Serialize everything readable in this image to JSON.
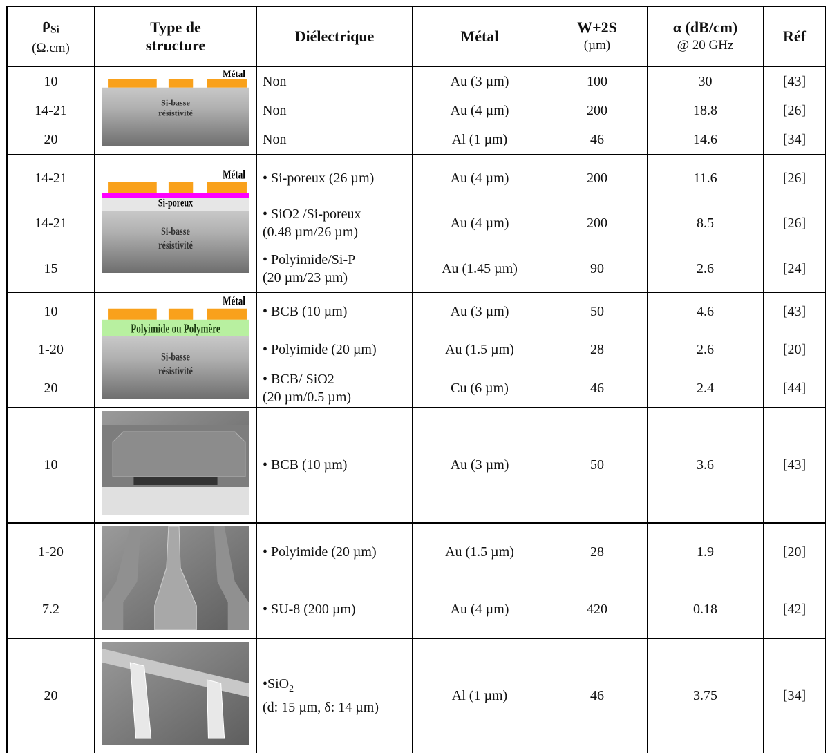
{
  "table": {
    "header": [
      {
        "lines": [
          {
            "text": "ρ",
            "sub": "Si"
          },
          "(Ω.cm)"
        ]
      },
      {
        "lines": [
          "Type de",
          "structure"
        ]
      },
      {
        "lines": [
          "Diélectrique"
        ]
      },
      {
        "lines": [
          "Métal"
        ]
      },
      {
        "lines": [
          "W+2S",
          "(µm)"
        ]
      },
      {
        "lines": [
          "α (dB/cm)",
          "@ 20 GHz"
        ]
      },
      {
        "lines": [
          "Réf"
        ]
      }
    ],
    "groups": [
      {
        "structure": {
          "metal": "Métal",
          "substrate": [
            "Si-basse",
            "résistivité"
          ]
        },
        "rows": [
          {
            "rho": "10",
            "dielectric": [
              "Non"
            ],
            "metal": "Au (3 µm)",
            "w2s": "100",
            "alpha": "30",
            "ref": "[43]"
          },
          {
            "rho": "14-21",
            "dielectric": [
              "Non"
            ],
            "metal": "Au (4 µm)",
            "w2s": "200",
            "alpha": "18.8",
            "ref": "[26]"
          },
          {
            "rho": "20",
            "dielectric": [
              "Non"
            ],
            "metal": "Al (1 µm)",
            "w2s": "46",
            "alpha": "14.6",
            "ref": "[34]"
          }
        ]
      },
      {
        "structure": {
          "metal": "Métal",
          "layer": "Si-poreux",
          "substrate": [
            "Si-basse",
            "résistivité"
          ]
        },
        "rows": [
          {
            "rho": "14-21",
            "dielectric": [
              "• Si-poreux (26 µm)"
            ],
            "metal": "Au (4 µm)",
            "w2s": "200",
            "alpha": "11.6",
            "ref": "[26]"
          },
          {
            "rho": "14-21",
            "dielectric": [
              "• SiO2 /Si-poreux",
              "(0.48 µm/26 µm)"
            ],
            "metal": "Au (4 µm)",
            "w2s": "200",
            "alpha": "8.5",
            "ref": "[26]"
          },
          {
            "rho": "15",
            "dielectric": [
              "• Polyimide/Si-P",
              "(20 µm/23 µm)"
            ],
            "metal": "Au (1.45 µm)",
            "w2s": "90",
            "alpha": "2.6",
            "ref": "[24]"
          }
        ]
      },
      {
        "structure": {
          "metal": "Métal",
          "layer": "Polyimide ou Polymère",
          "substrate": [
            "Si-basse",
            "résistivité"
          ]
        },
        "rows": [
          {
            "rho": "10",
            "dielectric": [
              "• BCB (10 µm)"
            ],
            "metal": "Au (3 µm)",
            "w2s": "50",
            "alpha": "4.6",
            "ref": "[43]"
          },
          {
            "rho": "1-20",
            "dielectric": [
              "• Polyimide (20 µm)"
            ],
            "metal": "Au (1.5 µm)",
            "w2s": "28",
            "alpha": "2.6",
            "ref": "[20]"
          },
          {
            "rho": "20",
            "dielectric": [
              "• BCB/ SiO2",
              "(20 µm/0.5 µm)"
            ],
            "metal": "Cu (6 µm)",
            "w2s": "46",
            "alpha": "2.4",
            "ref": "[44]"
          }
        ]
      },
      {
        "rows": [
          {
            "rho": "10",
            "dielectric": [
              "• BCB (10 µm)"
            ],
            "metal": "Au (3 µm)",
            "w2s": "50",
            "alpha": "3.6",
            "ref": "[43]"
          }
        ]
      },
      {
        "rows": [
          {
            "rho": "1-20",
            "dielectric": [
              "• Polyimide (20 µm)"
            ],
            "metal": "Au (1.5 µm)",
            "w2s": "28",
            "alpha": "1.9",
            "ref": "[20]"
          },
          {
            "rho": "7.2",
            "dielectric": [
              "• SU-8 (200 µm)"
            ],
            "metal": "Au (4 µm)",
            "w2s": "420",
            "alpha": "0.18",
            "ref": "[42]"
          }
        ]
      },
      {
        "rows": [
          {
            "rho": "20",
            "dielectric": [
              {
                "text": "•SiO",
                "sub": "2"
              },
              "(d: 15 µm, δ: 14 µm)"
            ],
            "metal": "Al (1 µm)",
            "w2s": "46",
            "alpha": "3.75",
            "ref": "[34]"
          }
        ]
      }
    ]
  }
}
